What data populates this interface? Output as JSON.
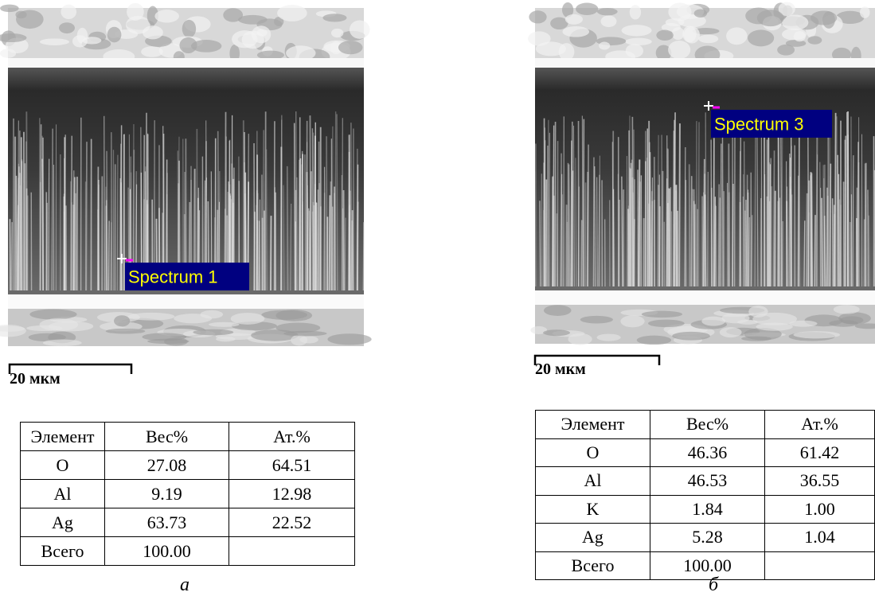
{
  "panels": [
    {
      "spectrum": "Spectrum 1",
      "scale_bar": "20 мкм",
      "table": {
        "header": [
          "Элемент",
          "Вес%",
          "Ат.%"
        ],
        "rows": [
          [
            "O",
            "27.08",
            "64.51"
          ],
          [
            "Al",
            "9.19",
            "12.98"
          ],
          [
            "Ag",
            "63.73",
            "22.52"
          ],
          [
            "Всего",
            "100.00"
          ]
        ]
      },
      "caption": "а"
    },
    {
      "spectrum": "Spectrum 3",
      "scale_bar": "20 мкм",
      "table": {
        "header": [
          "Элемент",
          "Вес%",
          "Ат.%"
        ],
        "rows": [
          [
            "O",
            "46.36",
            "61.42"
          ],
          [
            "Al",
            "46.53",
            "36.55"
          ],
          [
            "K",
            "1.84",
            "1.00"
          ],
          [
            "Ag",
            "5.28",
            "1.04"
          ],
          [
            "Всего",
            "100.00"
          ]
        ]
      },
      "caption": "б"
    }
  ]
}
